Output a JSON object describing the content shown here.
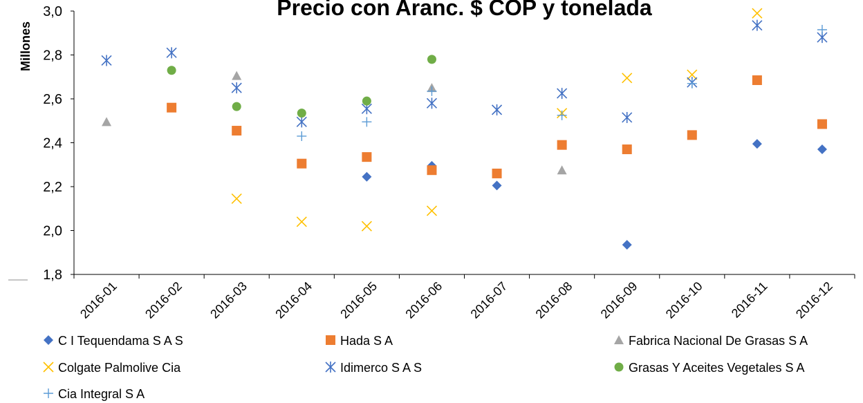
{
  "chart_data": {
    "type": "scatter",
    "title": "Precio con Aranc. $ COP y tonelada",
    "xlabel": "",
    "ylabel": "Millones",
    "categories": [
      "2016-01",
      "2016-02",
      "2016-03",
      "2016-04",
      "2016-05",
      "2016-06",
      "2016-07",
      "2016-08",
      "2016-09",
      "2016-10",
      "2016-11",
      "2016-12"
    ],
    "ylim": [
      1.8,
      3.0
    ],
    "yticks": [
      "1,8",
      "2,0",
      "2,2",
      "2,4",
      "2,6",
      "2,8",
      "3,0"
    ],
    "grid": false,
    "legend_position": "bottom",
    "series": [
      {
        "name": "C I Tequendama S A S",
        "marker": "diamond",
        "color": "#4472C4",
        "values": [
          null,
          null,
          null,
          null,
          2.245,
          2.295,
          2.205,
          null,
          1.935,
          null,
          2.395,
          2.37
        ]
      },
      {
        "name": "Hada S A",
        "marker": "square",
        "color": "#ED7D31",
        "values": [
          null,
          2.56,
          2.455,
          2.305,
          2.335,
          2.275,
          2.26,
          2.39,
          2.37,
          2.435,
          2.685,
          2.485
        ]
      },
      {
        "name": "Fabrica Nacional De Grasas S A",
        "marker": "triangle",
        "color": "#A5A5A5",
        "values": [
          2.495,
          null,
          2.705,
          null,
          null,
          2.65,
          null,
          2.275,
          null,
          null,
          null,
          null
        ]
      },
      {
        "name": "Colgate Palmolive Cia",
        "marker": "x",
        "color": "#FFC000",
        "values": [
          null,
          null,
          2.145,
          2.04,
          2.02,
          2.09,
          null,
          2.535,
          2.695,
          2.71,
          2.99,
          null
        ]
      },
      {
        "name": "Idimerco S A S",
        "marker": "star",
        "color": "#4472C4",
        "values": [
          2.775,
          2.81,
          2.65,
          2.495,
          2.555,
          2.58,
          2.55,
          2.625,
          2.515,
          2.675,
          2.935,
          2.88
        ]
      },
      {
        "name": "Grasas Y Aceites Vegetales S A",
        "marker": "circle",
        "color": "#70AD47",
        "values": [
          null,
          2.73,
          2.565,
          2.535,
          2.59,
          2.78,
          null,
          null,
          null,
          null,
          null,
          null
        ]
      },
      {
        "name": "Cia Integral S A",
        "marker": "plus",
        "color": "#5B9BD5",
        "values": [
          null,
          null,
          null,
          2.43,
          2.495,
          2.635,
          null,
          2.525,
          null,
          2.67,
          null,
          2.915
        ]
      }
    ]
  }
}
